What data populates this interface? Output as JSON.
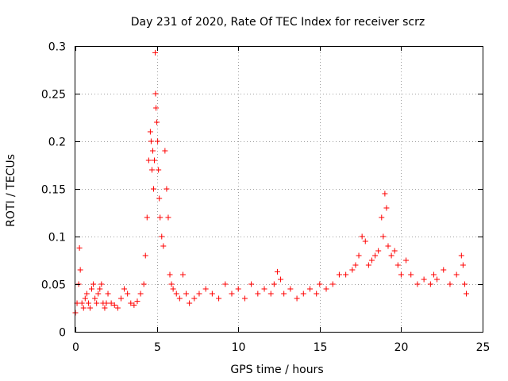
{
  "chart_data": {
    "type": "scatter",
    "title": "Day 231 of 2020, Rate Of TEC Index for receiver scrz",
    "xlabel": "GPS time / hours",
    "ylabel": "ROTI / TECUs",
    "xlim": [
      0,
      25
    ],
    "ylim": [
      0,
      0.3
    ],
    "xticks": [
      0,
      5,
      10,
      15,
      20,
      25
    ],
    "yticks": [
      0,
      0.05,
      0.1,
      0.15,
      0.2,
      0.25,
      0.3
    ],
    "ytick_labels": [
      "0",
      "0.05",
      "0.1",
      "0.15",
      "0.2",
      "0.25",
      "0.3"
    ],
    "grid": true,
    "marker": "+",
    "series": [
      {
        "name": "ROTI",
        "color": "#ff0000",
        "x": [
          0.0,
          0.1,
          0.2,
          0.25,
          0.3,
          0.4,
          0.5,
          0.6,
          0.7,
          0.8,
          0.9,
          1.0,
          1.1,
          1.2,
          1.3,
          1.4,
          1.5,
          1.6,
          1.7,
          1.8,
          1.9,
          2.0,
          2.2,
          2.4,
          2.6,
          2.8,
          3.0,
          3.2,
          3.4,
          3.6,
          3.8,
          4.0,
          4.2,
          4.3,
          4.4,
          4.5,
          4.6,
          4.65,
          4.7,
          4.75,
          4.8,
          4.85,
          4.9,
          4.92,
          4.95,
          5.0,
          5.05,
          5.1,
          5.15,
          5.2,
          5.3,
          5.4,
          5.5,
          5.6,
          5.7,
          5.8,
          5.9,
          6.0,
          6.2,
          6.4,
          6.6,
          6.8,
          7.0,
          7.3,
          7.6,
          8.0,
          8.4,
          8.8,
          9.2,
          9.6,
          10.0,
          10.4,
          10.8,
          11.2,
          11.6,
          12.0,
          12.2,
          12.4,
          12.6,
          12.8,
          13.2,
          13.6,
          14.0,
          14.4,
          14.8,
          15.0,
          15.4,
          15.8,
          16.2,
          16.6,
          17.0,
          17.2,
          17.4,
          17.6,
          17.8,
          18.0,
          18.2,
          18.4,
          18.6,
          18.8,
          18.9,
          19.0,
          19.1,
          19.2,
          19.4,
          19.6,
          19.8,
          20.0,
          20.3,
          20.6,
          21.0,
          21.4,
          21.8,
          22.0,
          22.2,
          22.6,
          23.0,
          23.4,
          23.7,
          23.8,
          23.9,
          24.0
        ],
        "y": [
          0.02,
          0.03,
          0.05,
          0.088,
          0.065,
          0.03,
          0.025,
          0.035,
          0.04,
          0.03,
          0.025,
          0.045,
          0.05,
          0.035,
          0.03,
          0.04,
          0.045,
          0.05,
          0.03,
          0.025,
          0.03,
          0.04,
          0.03,
          0.028,
          0.025,
          0.035,
          0.045,
          0.04,
          0.03,
          0.028,
          0.032,
          0.04,
          0.05,
          0.08,
          0.12,
          0.18,
          0.21,
          0.2,
          0.17,
          0.19,
          0.15,
          0.18,
          0.293,
          0.25,
          0.235,
          0.22,
          0.2,
          0.17,
          0.14,
          0.12,
          0.1,
          0.09,
          0.19,
          0.15,
          0.12,
          0.06,
          0.05,
          0.045,
          0.04,
          0.035,
          0.06,
          0.04,
          0.03,
          0.035,
          0.04,
          0.045,
          0.04,
          0.035,
          0.05,
          0.04,
          0.045,
          0.035,
          0.05,
          0.04,
          0.045,
          0.04,
          0.05,
          0.063,
          0.055,
          0.04,
          0.045,
          0.035,
          0.04,
          0.045,
          0.04,
          0.05,
          0.045,
          0.05,
          0.06,
          0.06,
          0.065,
          0.07,
          0.08,
          0.1,
          0.095,
          0.07,
          0.075,
          0.08,
          0.085,
          0.12,
          0.1,
          0.145,
          0.13,
          0.09,
          0.08,
          0.085,
          0.07,
          0.06,
          0.075,
          0.06,
          0.05,
          0.055,
          0.05,
          0.06,
          0.055,
          0.065,
          0.05,
          0.06,
          0.08,
          0.07,
          0.05,
          0.04
        ]
      }
    ]
  }
}
